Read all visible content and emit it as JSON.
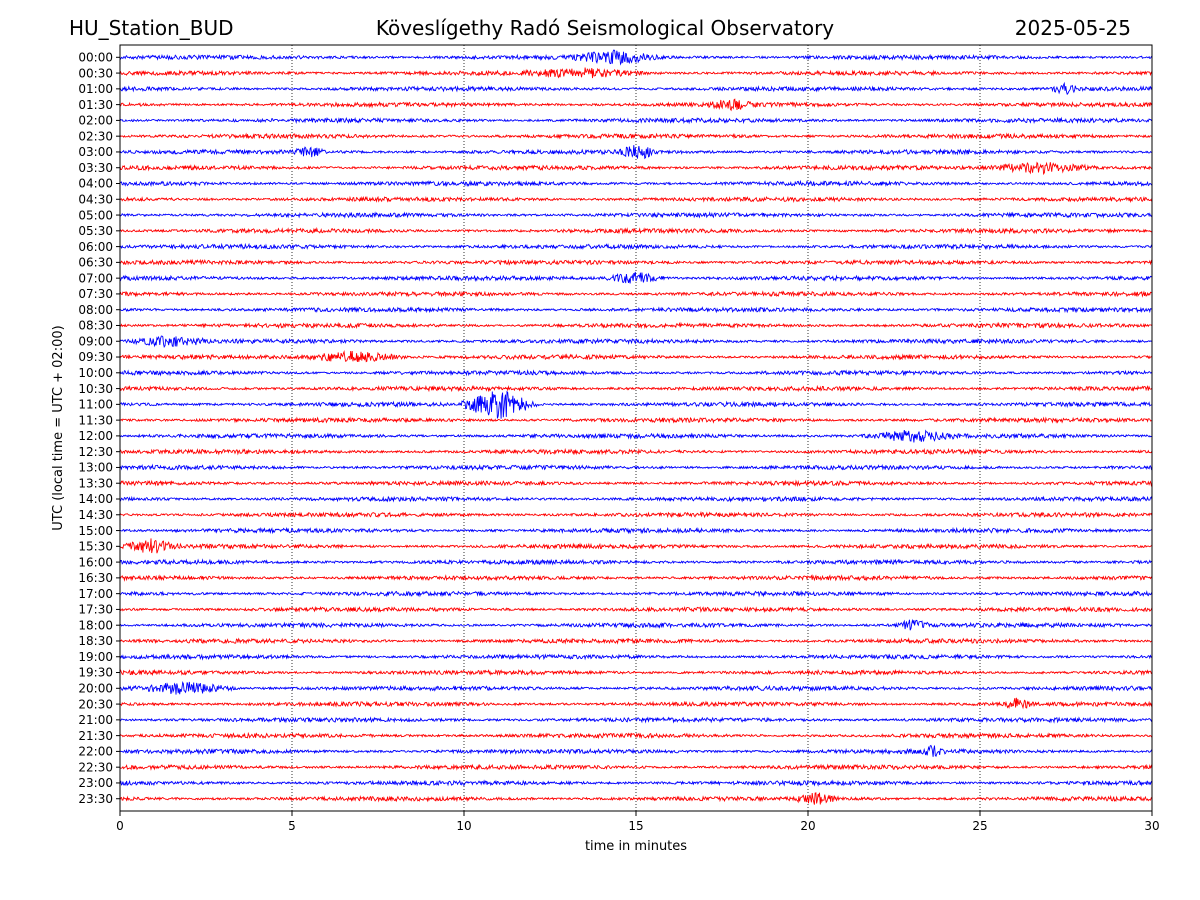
{
  "header": {
    "station": "HU_Station_BUD",
    "observatory": "Köveslígethy Radó Seismological Observatory",
    "date": "2025-05-25"
  },
  "chart_data": {
    "type": "line",
    "title": "Köveslígethy Radó Seismological Observatory",
    "xlabel": "time in minutes",
    "ylabel": "UTC (local time = UTC + 02:00)",
    "xlim": [
      0,
      30
    ],
    "x_ticks": [
      "0",
      "5",
      "10",
      "15",
      "20",
      "25",
      "30"
    ],
    "grid": "vertical dotted lines at 5-minute intervals",
    "legend": "none",
    "colors": {
      "even_rows": "#0000ff",
      "odd_rows": "#ff0000",
      "grid": "#000000"
    },
    "rows": [
      "00:00",
      "00:30",
      "01:00",
      "01:30",
      "02:00",
      "02:30",
      "03:00",
      "03:30",
      "04:00",
      "04:30",
      "05:00",
      "05:30",
      "06:00",
      "06:30",
      "07:00",
      "07:30",
      "08:00",
      "08:30",
      "09:00",
      "09:30",
      "10:00",
      "10:30",
      "11:00",
      "11:30",
      "12:00",
      "12:30",
      "13:00",
      "13:30",
      "14:00",
      "14:30",
      "15:00",
      "15:30",
      "16:00",
      "16:30",
      "17:00",
      "17:30",
      "18:00",
      "18:30",
      "19:00",
      "19:30",
      "20:00",
      "20:30",
      "21:00",
      "21:30",
      "22:00",
      "22:30",
      "23:00",
      "23:30"
    ],
    "events": [
      {
        "row": "00:00",
        "minute_start": 13.0,
        "minute_end": 15.8,
        "relative_amplitude": 1.8
      },
      {
        "row": "00:30",
        "minute_start": 11.5,
        "minute_end": 15.5,
        "relative_amplitude": 1.2
      },
      {
        "row": "01:00",
        "minute_start": 27.0,
        "minute_end": 28.0,
        "relative_amplitude": 1.4
      },
      {
        "row": "01:30",
        "minute_start": 17.0,
        "minute_end": 18.6,
        "relative_amplitude": 1.4
      },
      {
        "row": "03:00",
        "minute_start": 5.0,
        "minute_end": 6.0,
        "relative_amplitude": 1.5
      },
      {
        "row": "03:00",
        "minute_start": 14.5,
        "minute_end": 15.6,
        "relative_amplitude": 2.3
      },
      {
        "row": "03:30",
        "minute_start": 25.0,
        "minute_end": 28.6,
        "relative_amplitude": 1.7
      },
      {
        "row": "07:00",
        "minute_start": 14.0,
        "minute_end": 16.0,
        "relative_amplitude": 1.8
      },
      {
        "row": "09:00",
        "minute_start": 0.0,
        "minute_end": 2.8,
        "relative_amplitude": 1.4
      },
      {
        "row": "09:30",
        "minute_start": 5.0,
        "minute_end": 8.5,
        "relative_amplitude": 1.6
      },
      {
        "row": "11:00",
        "minute_start": 9.8,
        "minute_end": 12.2,
        "relative_amplitude": 4.5
      },
      {
        "row": "12:00",
        "minute_start": 21.5,
        "minute_end": 24.5,
        "relative_amplitude": 1.6
      },
      {
        "row": "15:30",
        "minute_start": 0.0,
        "minute_end": 1.8,
        "relative_amplitude": 2.2
      },
      {
        "row": "18:00",
        "minute_start": 22.5,
        "minute_end": 23.6,
        "relative_amplitude": 1.6
      },
      {
        "row": "20:00",
        "minute_start": 0.3,
        "minute_end": 3.5,
        "relative_amplitude": 1.8
      },
      {
        "row": "20:30",
        "minute_start": 25.6,
        "minute_end": 26.6,
        "relative_amplitude": 1.6
      },
      {
        "row": "22:00",
        "minute_start": 23.3,
        "minute_end": 24.0,
        "relative_amplitude": 1.6
      },
      {
        "row": "23:30",
        "minute_start": 19.5,
        "minute_end": 21.0,
        "relative_amplitude": 1.5
      }
    ]
  }
}
